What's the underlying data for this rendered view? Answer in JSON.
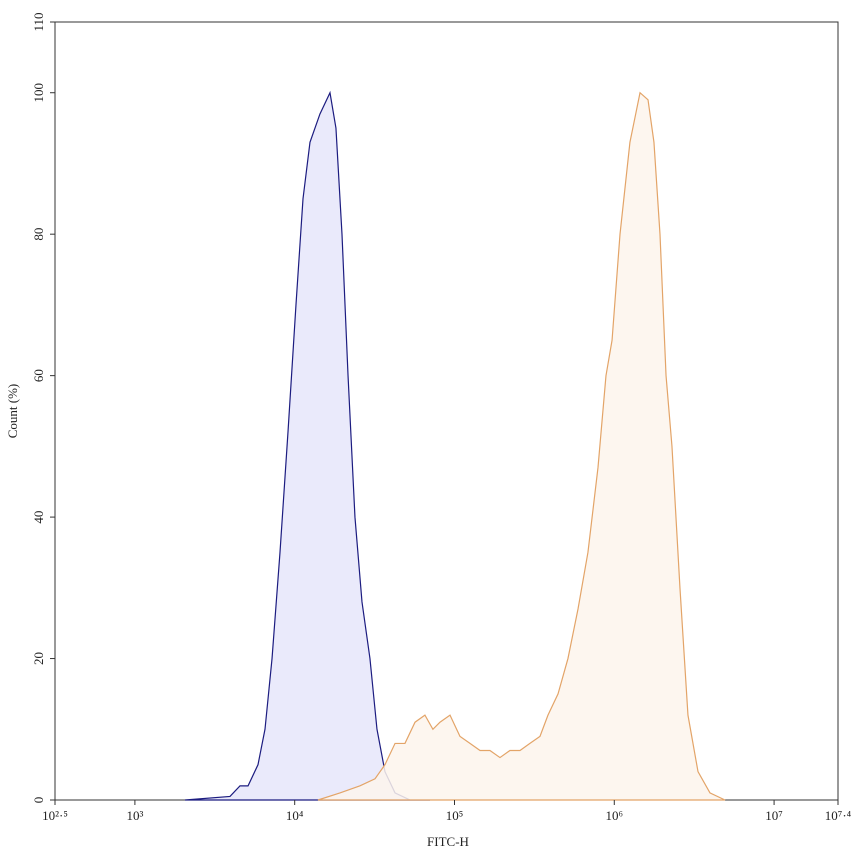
{
  "chart_data": {
    "type": "area",
    "xlabel": "FITC-H",
    "ylabel": "Count (%)",
    "xscale": "log",
    "xlim": [
      316.23,
      25118864
    ],
    "ylim": [
      0,
      110
    ],
    "xticks": [
      {
        "value": 316.23,
        "label": "10²·⁵"
      },
      {
        "value": 1000,
        "label": "10³"
      },
      {
        "value": 10000,
        "label": "10⁴"
      },
      {
        "value": 100000,
        "label": "10⁵"
      },
      {
        "value": 1000000,
        "label": "10⁶"
      },
      {
        "value": 10000000,
        "label": "10⁷"
      },
      {
        "value": 25118864,
        "label": "10⁷·⁴"
      }
    ],
    "yticks": [
      0,
      20,
      40,
      60,
      80,
      100,
      110
    ],
    "series": [
      {
        "color": "#1c1c80",
        "fill": "#e6e6fa",
        "x": [
          2058,
          3936,
          4548,
          5105,
          5894,
          6518,
          7214,
          8091,
          9078,
          10185,
          11272,
          12465,
          14390,
          16630,
          18120,
          19770,
          21570,
          23830,
          26370,
          29580,
          32730,
          36730,
          42460,
          52720,
          70310
        ],
        "values": [
          0,
          0.5,
          2,
          2,
          5,
          10,
          20,
          35,
          52,
          70,
          85,
          93,
          97,
          100,
          95,
          80,
          60,
          40,
          28,
          20,
          10,
          4,
          1,
          0,
          0
        ]
      },
      {
        "color": "#e3a468",
        "fill": "#fdf4ec",
        "x": [
          13990,
          19190,
          25630,
          31830,
          36730,
          42460,
          48980,
          56620,
          65310,
          73280,
          81100,
          93750,
          108200,
          125000,
          144500,
          166700,
          192600,
          222300,
          257000,
          296500,
          342800,
          384600,
          444600,
          512900,
          592900,
          684000,
          790700,
          887200,
          968300,
          1086000,
          1253000,
          1449000,
          1626000,
          1771000,
          1932000,
          2108000,
          2296000,
          2576000,
          2891000,
          3342000,
          3971000,
          4931000
        ],
        "values": [
          0,
          1,
          2,
          3,
          5,
          8,
          8,
          11,
          12,
          10,
          11,
          12,
          9,
          8,
          7,
          7,
          6,
          7,
          7,
          8,
          9,
          12,
          15,
          20,
          27,
          35,
          47,
          60,
          65,
          80,
          93,
          100,
          99,
          93,
          80,
          60,
          50,
          30,
          12,
          4,
          1,
          0
        ]
      }
    ]
  }
}
